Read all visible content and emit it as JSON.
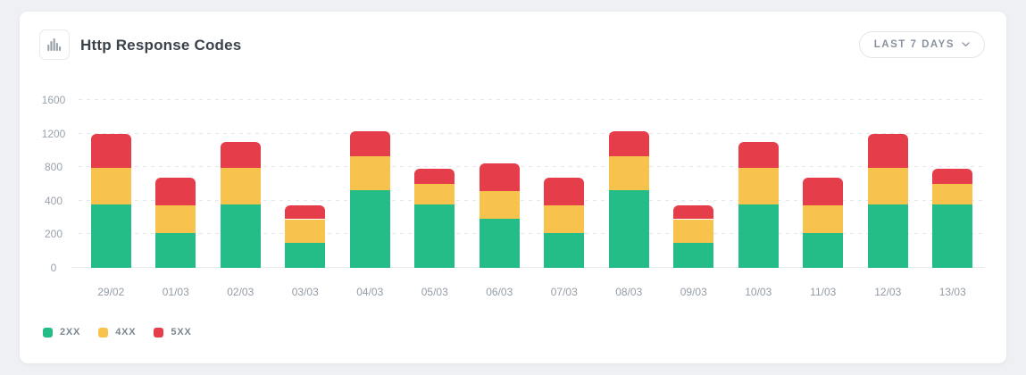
{
  "header": {
    "title": "Http Response Codes",
    "range_button": {
      "label": "LAST 7 DAYS"
    }
  },
  "chart_data": {
    "type": "bar",
    "stacked": true,
    "title": "Http Response Codes",
    "categories": [
      "29/02",
      "01/03",
      "02/03",
      "03/03",
      "04/03",
      "05/03",
      "06/03",
      "07/03",
      "08/03",
      "09/03",
      "10/03",
      "11/03",
      "12/03",
      "13/03"
    ],
    "series": [
      {
        "name": "2XX",
        "color": "#25BD87",
        "values": [
          380,
          210,
          380,
          150,
          530,
          380,
          290,
          210,
          530,
          150,
          380,
          210,
          380,
          380
        ]
      },
      {
        "name": "4XX",
        "color": "#F7C34C",
        "values": [
          410,
          160,
          410,
          140,
          400,
          220,
          220,
          160,
          400,
          140,
          410,
          160,
          410,
          220
        ]
      },
      {
        "name": "5XX",
        "color": "#E53D49",
        "values": [
          410,
          310,
          310,
          80,
          300,
          180,
          340,
          310,
          300,
          80,
          310,
          310,
          410,
          180
        ]
      }
    ],
    "stack_totals": [
      1200,
      680,
      1100,
      370,
      1230,
      780,
      850,
      680,
      1230,
      370,
      1100,
      680,
      1200,
      780
    ],
    "y_ticks": [
      0,
      200,
      400,
      800,
      1200,
      1600
    ],
    "y_axis": {
      "range": [
        0,
        1600
      ],
      "scale": "piecewise: ticks equally spaced"
    },
    "grid": {
      "horizontal": "dashed",
      "baseline": "solid"
    },
    "legend_position": "bottom-left"
  },
  "colors": {
    "page_background": "#eef0f3",
    "card_background": "#ffffff",
    "title_text": "#3a424c",
    "axis_text": "#9aa2ac",
    "gridline": "#e4e7eb",
    "series_2xx": "#25BD87",
    "series_4xx": "#F7C34C",
    "series_5xx": "#E53D49"
  }
}
